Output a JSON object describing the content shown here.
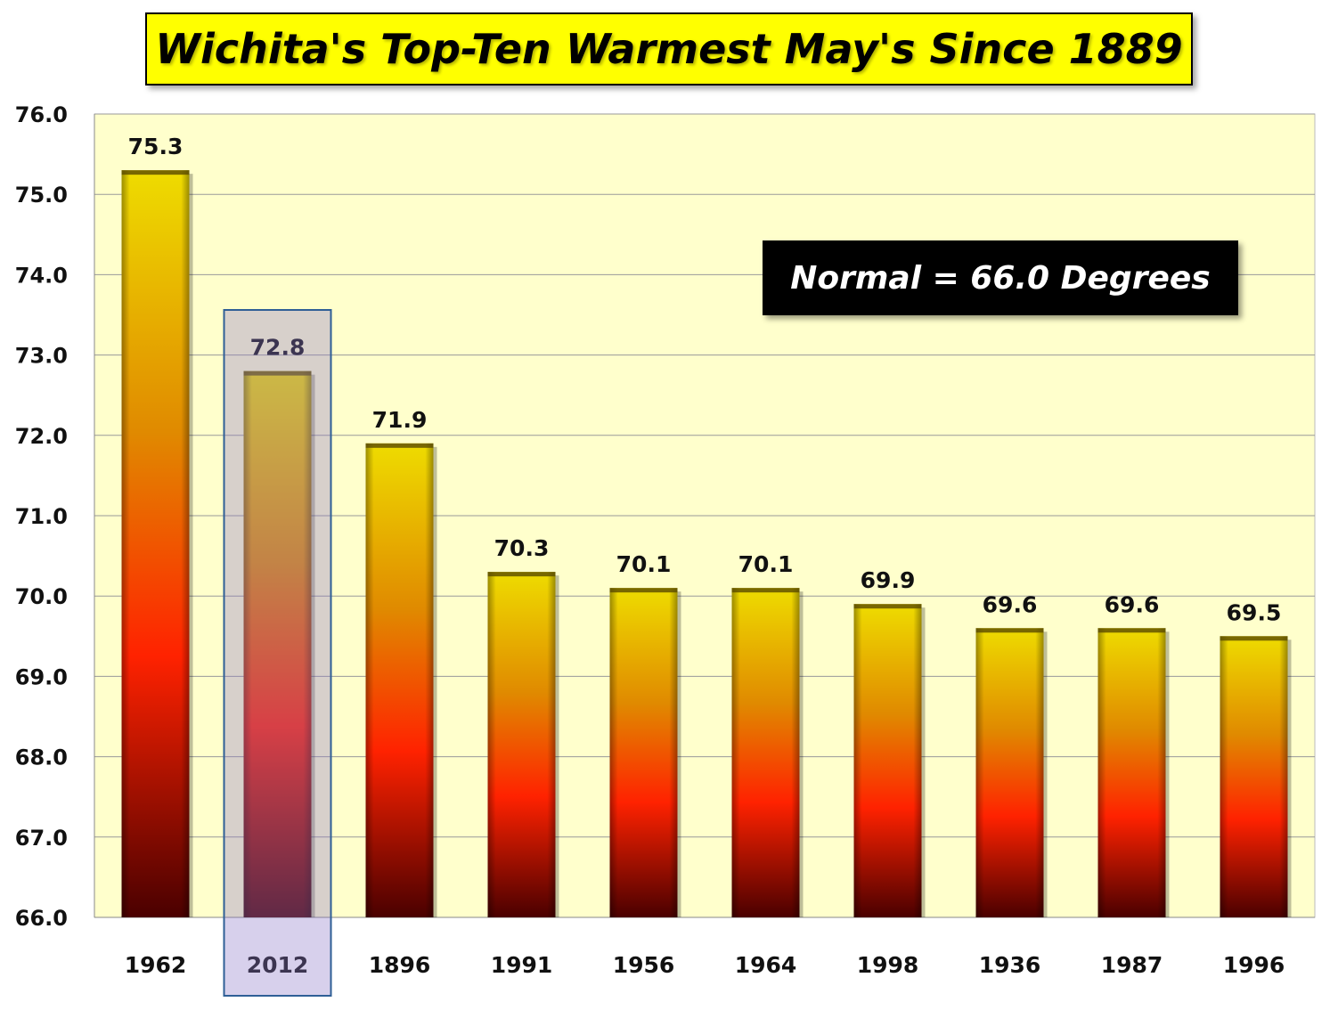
{
  "colors": {
    "plot_background": "#ffffcc",
    "bar_top": "#eedc00",
    "bar_mid": "#e07800",
    "bar_red": "#ff1a00",
    "bar_bottom": "#4a0000",
    "highlight_fill": "#8c78c8",
    "highlight_border": "#2f5f96",
    "gridline": "#9a9a9a",
    "title_background": "#ffff00",
    "annotation_background": "#000000",
    "annotation_text": "#ffffff"
  },
  "chart_data": {
    "type": "bar",
    "title": "Wichita's Top-Ten Warmest May's Since 1889",
    "xlabel": "",
    "ylabel": "",
    "categories": [
      "1962",
      "2012",
      "1896",
      "1991",
      "1956",
      "1964",
      "1998",
      "1936",
      "1987",
      "1996"
    ],
    "values": [
      75.3,
      72.8,
      71.9,
      70.3,
      70.1,
      70.1,
      69.9,
      69.6,
      69.6,
      69.5
    ],
    "data_labels": [
      "75.3",
      "72.8",
      "71.9",
      "70.3",
      "70.1",
      "70.1",
      "69.9",
      "69.6",
      "69.6",
      "69.5"
    ],
    "ylim": [
      66.0,
      76.0
    ],
    "yticks": [
      "66.0",
      "67.0",
      "68.0",
      "69.0",
      "70.0",
      "71.0",
      "72.0",
      "73.0",
      "74.0",
      "75.0",
      "76.0"
    ],
    "grid": true,
    "legend": "none",
    "highlighted_category": "2012",
    "annotation": "Normal = 66.0 Degrees"
  }
}
